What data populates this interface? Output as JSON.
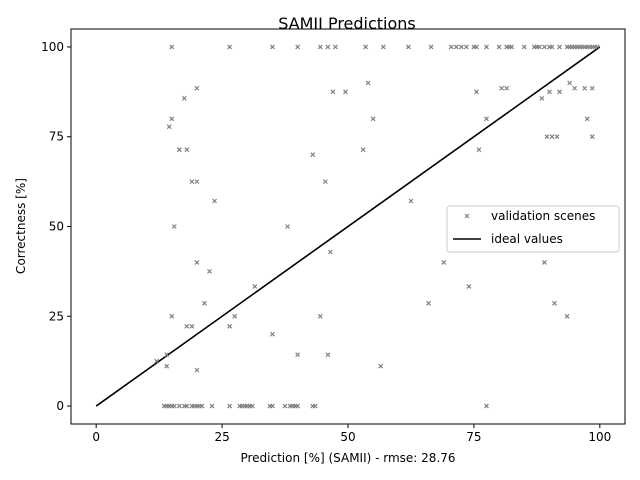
{
  "chart_data": {
    "type": "scatter",
    "title": "SAMII Predictions",
    "xlabel": "Prediction [%] (SAMII) - rmse: 28.76",
    "ylabel": "Correctness [%]",
    "xlim": [
      -5,
      105
    ],
    "ylim": [
      -5,
      105
    ],
    "xticks": [
      0,
      25,
      50,
      75,
      100
    ],
    "yticks": [
      0,
      25,
      50,
      75,
      100
    ],
    "grid": false,
    "legend_position": "center-right",
    "colors": {
      "scatter": "#808080",
      "line": "#000000"
    },
    "series": [
      {
        "name": "validation scenes",
        "kind": "scatter",
        "marker": "x",
        "points": [
          [
            15,
            100
          ],
          [
            26.5,
            100
          ],
          [
            35,
            100
          ],
          [
            40,
            100
          ],
          [
            44.5,
            100
          ],
          [
            46,
            100
          ],
          [
            47.5,
            100
          ],
          [
            53.5,
            100
          ],
          [
            57,
            100
          ],
          [
            62,
            100
          ],
          [
            66.5,
            100
          ],
          [
            70.5,
            100
          ],
          [
            71.5,
            100
          ],
          [
            72.5,
            100
          ],
          [
            73.5,
            100
          ],
          [
            75,
            100
          ],
          [
            75.5,
            100
          ],
          [
            77.5,
            100
          ],
          [
            80,
            100
          ],
          [
            81.5,
            100
          ],
          [
            82,
            100
          ],
          [
            82.5,
            100
          ],
          [
            85,
            100
          ],
          [
            87,
            100
          ],
          [
            87.5,
            100
          ],
          [
            88,
            100
          ],
          [
            89,
            100
          ],
          [
            90,
            100
          ],
          [
            90.5,
            100
          ],
          [
            92,
            100
          ],
          [
            93.5,
            100
          ],
          [
            94,
            100
          ],
          [
            94.5,
            100
          ],
          [
            95,
            100
          ],
          [
            95.5,
            100
          ],
          [
            96,
            100
          ],
          [
            96.5,
            100
          ],
          [
            97,
            100
          ],
          [
            97.5,
            100
          ],
          [
            98,
            100
          ],
          [
            98.5,
            100
          ],
          [
            99,
            100
          ],
          [
            99.5,
            100
          ],
          [
            54,
            90
          ],
          [
            94,
            90
          ],
          [
            20,
            88.5
          ],
          [
            47,
            87.5
          ],
          [
            49.5,
            87.5
          ],
          [
            75.5,
            87.5
          ],
          [
            80.5,
            88.5
          ],
          [
            81.5,
            88.5
          ],
          [
            88.5,
            85.7
          ],
          [
            90,
            87.5
          ],
          [
            92,
            87.5
          ],
          [
            95,
            88.5
          ],
          [
            97,
            88.5
          ],
          [
            98.5,
            88.5
          ],
          [
            17.5,
            85.7
          ],
          [
            15,
            80
          ],
          [
            55,
            80
          ],
          [
            77.5,
            80
          ],
          [
            97.5,
            80
          ],
          [
            14.5,
            77.8
          ],
          [
            89.5,
            75
          ],
          [
            90.5,
            75
          ],
          [
            91.5,
            75
          ],
          [
            98.5,
            75
          ],
          [
            16.5,
            71.4
          ],
          [
            18,
            71.4
          ],
          [
            53,
            71.4
          ],
          [
            76,
            71.4
          ],
          [
            43,
            70
          ],
          [
            19,
            62.5
          ],
          [
            20,
            62.5
          ],
          [
            45.5,
            62.5
          ],
          [
            23.5,
            57.1
          ],
          [
            62.5,
            57.1
          ],
          [
            15.5,
            50
          ],
          [
            38,
            50
          ],
          [
            46.5,
            42.9
          ],
          [
            20,
            40
          ],
          [
            69,
            40
          ],
          [
            89,
            40
          ],
          [
            22.5,
            37.5
          ],
          [
            31.5,
            33.3
          ],
          [
            74,
            33.3
          ],
          [
            21.5,
            28.6
          ],
          [
            66,
            28.6
          ],
          [
            91,
            28.6
          ],
          [
            15,
            25
          ],
          [
            27.5,
            25
          ],
          [
            44.5,
            25
          ],
          [
            93.5,
            25
          ],
          [
            18,
            22.2
          ],
          [
            19,
            22.2
          ],
          [
            26.5,
            22.2
          ],
          [
            35,
            20
          ],
          [
            40,
            14.3
          ],
          [
            46,
            14.3
          ],
          [
            14,
            14.3
          ],
          [
            12,
            12.5
          ],
          [
            14,
            11.1
          ],
          [
            56.5,
            11.1
          ],
          [
            20,
            10
          ],
          [
            13.5,
            0
          ],
          [
            14,
            0
          ],
          [
            14.5,
            0
          ],
          [
            15,
            0
          ],
          [
            15.5,
            0
          ],
          [
            16.5,
            0
          ],
          [
            17.5,
            0
          ],
          [
            18,
            0
          ],
          [
            19,
            0
          ],
          [
            19.5,
            0
          ],
          [
            20,
            0
          ],
          [
            20.5,
            0
          ],
          [
            21,
            0
          ],
          [
            23,
            0
          ],
          [
            26.5,
            0
          ],
          [
            28.5,
            0
          ],
          [
            29,
            0
          ],
          [
            29.5,
            0
          ],
          [
            30,
            0
          ],
          [
            30.5,
            0
          ],
          [
            31,
            0
          ],
          [
            34.5,
            0
          ],
          [
            35,
            0
          ],
          [
            37.5,
            0
          ],
          [
            38.5,
            0
          ],
          [
            39,
            0
          ],
          [
            39.5,
            0
          ],
          [
            40,
            0
          ],
          [
            43,
            0
          ],
          [
            43.5,
            0
          ],
          [
            77.5,
            0
          ]
        ]
      },
      {
        "name": "ideal values",
        "kind": "line",
        "points": [
          [
            0,
            0
          ],
          [
            100,
            100
          ]
        ]
      }
    ]
  }
}
